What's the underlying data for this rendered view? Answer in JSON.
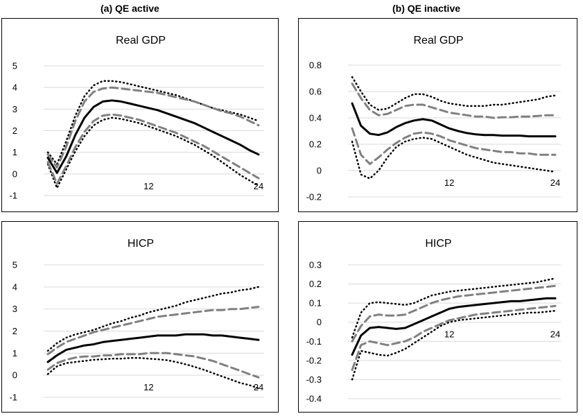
{
  "column_titles": [
    "(a) QE active",
    "(b) QE inactive"
  ],
  "chart_data": [
    {
      "type": "line",
      "panel": "QE active",
      "title": "Real GDP",
      "x": [
        1,
        2,
        3,
        4,
        5,
        6,
        7,
        8,
        9,
        10,
        11,
        12,
        13,
        14,
        15,
        16,
        17,
        18,
        19,
        20,
        21,
        22,
        23,
        24
      ],
      "xticks": [
        12,
        24
      ],
      "yticks": [
        5,
        4,
        3,
        2,
        1,
        0,
        -1
      ],
      "ylim": [
        -1,
        5
      ],
      "grid": true,
      "series": [
        {
          "name": "median",
          "style": "solid",
          "values": [
            0.75,
            0.05,
            0.8,
            1.8,
            2.6,
            3.1,
            3.35,
            3.4,
            3.35,
            3.25,
            3.15,
            3.05,
            2.95,
            2.8,
            2.65,
            2.5,
            2.35,
            2.15,
            1.95,
            1.75,
            1.55,
            1.35,
            1.1,
            0.9
          ]
        },
        {
          "name": "inner-upper",
          "style": "dashed",
          "values": [
            0.9,
            0.3,
            1.25,
            2.45,
            3.35,
            3.8,
            3.95,
            4.0,
            3.95,
            3.9,
            3.85,
            3.8,
            3.75,
            3.65,
            3.55,
            3.45,
            3.35,
            3.2,
            3.05,
            2.9,
            2.8,
            2.65,
            2.45,
            2.25
          ]
        },
        {
          "name": "inner-lower",
          "style": "dashed",
          "values": [
            0.55,
            -0.45,
            0.35,
            1.25,
            1.95,
            2.45,
            2.7,
            2.75,
            2.7,
            2.6,
            2.5,
            2.35,
            2.2,
            2.05,
            1.9,
            1.7,
            1.5,
            1.3,
            1.05,
            0.8,
            0.55,
            0.3,
            0.05,
            -0.2
          ]
        },
        {
          "name": "outer-upper",
          "style": "dotted",
          "values": [
            1.0,
            0.45,
            1.5,
            2.7,
            3.6,
            4.1,
            4.3,
            4.3,
            4.25,
            4.15,
            4.05,
            3.95,
            3.85,
            3.75,
            3.65,
            3.5,
            3.35,
            3.2,
            3.05,
            2.95,
            2.85,
            2.75,
            2.6,
            2.45
          ]
        },
        {
          "name": "outer-lower",
          "style": "dotted",
          "values": [
            0.45,
            -0.65,
            0.2,
            1.05,
            1.75,
            2.25,
            2.5,
            2.6,
            2.55,
            2.45,
            2.35,
            2.2,
            2.05,
            1.9,
            1.75,
            1.55,
            1.35,
            1.1,
            0.85,
            0.55,
            0.25,
            -0.05,
            -0.3,
            -0.55
          ]
        }
      ]
    },
    {
      "type": "line",
      "panel": "QE inactive",
      "title": "Real GDP",
      "x": [
        1,
        2,
        3,
        4,
        5,
        6,
        7,
        8,
        9,
        10,
        11,
        12,
        13,
        14,
        15,
        16,
        17,
        18,
        19,
        20,
        21,
        22,
        23,
        24
      ],
      "xticks": [
        12,
        24
      ],
      "yticks": [
        0.8,
        0.6,
        0.4,
        0.2,
        0,
        -0.2
      ],
      "ylim": [
        -0.2,
        0.8
      ],
      "grid": true,
      "series": [
        {
          "name": "median",
          "style": "solid",
          "values": [
            0.51,
            0.34,
            0.28,
            0.27,
            0.29,
            0.33,
            0.36,
            0.38,
            0.39,
            0.38,
            0.35,
            0.32,
            0.3,
            0.285,
            0.275,
            0.27,
            0.27,
            0.265,
            0.265,
            0.265,
            0.26,
            0.26,
            0.26,
            0.26
          ]
        },
        {
          "name": "inner-upper",
          "style": "dashed",
          "values": [
            0.66,
            0.55,
            0.46,
            0.42,
            0.43,
            0.46,
            0.49,
            0.5,
            0.5,
            0.48,
            0.46,
            0.44,
            0.43,
            0.42,
            0.41,
            0.41,
            0.4,
            0.405,
            0.405,
            0.41,
            0.41,
            0.415,
            0.42,
            0.42
          ]
        },
        {
          "name": "inner-lower",
          "style": "dashed",
          "values": [
            0.32,
            0.12,
            0.05,
            0.1,
            0.16,
            0.21,
            0.25,
            0.28,
            0.29,
            0.28,
            0.26,
            0.23,
            0.21,
            0.19,
            0.17,
            0.16,
            0.15,
            0.14,
            0.14,
            0.13,
            0.13,
            0.12,
            0.12,
            0.12
          ]
        },
        {
          "name": "outer-upper",
          "style": "dotted",
          "values": [
            0.71,
            0.6,
            0.5,
            0.46,
            0.47,
            0.51,
            0.55,
            0.58,
            0.58,
            0.56,
            0.53,
            0.51,
            0.5,
            0.49,
            0.49,
            0.49,
            0.5,
            0.5,
            0.51,
            0.52,
            0.53,
            0.54,
            0.56,
            0.57
          ]
        },
        {
          "name": "outer-lower",
          "style": "dotted",
          "values": [
            0.22,
            -0.03,
            -0.06,
            0.0,
            0.1,
            0.18,
            0.22,
            0.24,
            0.25,
            0.24,
            0.21,
            0.18,
            0.15,
            0.12,
            0.1,
            0.08,
            0.06,
            0.05,
            0.04,
            0.03,
            0.02,
            0.01,
            0.0,
            -0.01
          ]
        }
      ]
    },
    {
      "type": "line",
      "panel": "QE active",
      "title": "HICP",
      "x": [
        1,
        2,
        3,
        4,
        5,
        6,
        7,
        8,
        9,
        10,
        11,
        12,
        13,
        14,
        15,
        16,
        17,
        18,
        19,
        20,
        21,
        22,
        23,
        24
      ],
      "xticks": [
        12,
        24
      ],
      "yticks": [
        5,
        4,
        3,
        2,
        1,
        0,
        -1
      ],
      "ylim": [
        -1,
        5
      ],
      "grid": true,
      "series": [
        {
          "name": "median",
          "style": "solid",
          "values": [
            0.6,
            0.9,
            1.15,
            1.25,
            1.35,
            1.4,
            1.5,
            1.55,
            1.6,
            1.65,
            1.7,
            1.75,
            1.8,
            1.8,
            1.8,
            1.85,
            1.85,
            1.85,
            1.8,
            1.8,
            1.75,
            1.7,
            1.65,
            1.6
          ]
        },
        {
          "name": "inner-upper",
          "style": "dashed",
          "values": [
            0.95,
            1.25,
            1.5,
            1.65,
            1.8,
            1.95,
            2.05,
            2.15,
            2.25,
            2.35,
            2.45,
            2.55,
            2.65,
            2.7,
            2.75,
            2.8,
            2.85,
            2.9,
            2.95,
            2.95,
            3.0,
            3.0,
            3.05,
            3.1
          ]
        },
        {
          "name": "inner-lower",
          "style": "dashed",
          "values": [
            0.25,
            0.55,
            0.7,
            0.8,
            0.85,
            0.85,
            0.9,
            0.9,
            0.95,
            0.95,
            0.95,
            1.0,
            1.0,
            1.0,
            0.95,
            0.9,
            0.85,
            0.75,
            0.65,
            0.5,
            0.35,
            0.2,
            0.05,
            -0.1
          ]
        },
        {
          "name": "outer-upper",
          "style": "dotted",
          "values": [
            1.1,
            1.45,
            1.7,
            1.85,
            1.95,
            2.05,
            2.2,
            2.35,
            2.45,
            2.6,
            2.7,
            2.85,
            2.95,
            3.05,
            3.15,
            3.3,
            3.4,
            3.5,
            3.6,
            3.7,
            3.75,
            3.85,
            3.9,
            4.0
          ]
        },
        {
          "name": "outer-lower",
          "style": "dotted",
          "values": [
            0.05,
            0.4,
            0.55,
            0.6,
            0.65,
            0.7,
            0.72,
            0.75,
            0.75,
            0.78,
            0.78,
            0.75,
            0.72,
            0.68,
            0.6,
            0.5,
            0.38,
            0.25,
            0.1,
            -0.05,
            -0.2,
            -0.35,
            -0.45,
            -0.6
          ]
        }
      ]
    },
    {
      "type": "line",
      "panel": "QE inactive",
      "title": "HICP",
      "x": [
        1,
        2,
        3,
        4,
        5,
        6,
        7,
        8,
        9,
        10,
        11,
        12,
        13,
        14,
        15,
        16,
        17,
        18,
        19,
        20,
        21,
        22,
        23,
        24
      ],
      "xticks": [
        12,
        24
      ],
      "yticks": [
        0.3,
        0.2,
        0.1,
        0,
        -0.1,
        -0.2,
        -0.3,
        -0.4
      ],
      "ylim": [
        -0.4,
        0.3
      ],
      "grid": true,
      "series": [
        {
          "name": "median",
          "style": "solid",
          "values": [
            -0.17,
            -0.07,
            -0.03,
            -0.025,
            -0.03,
            -0.035,
            -0.03,
            -0.01,
            0.01,
            0.03,
            0.05,
            0.07,
            0.08,
            0.085,
            0.09,
            0.095,
            0.1,
            0.105,
            0.11,
            0.11,
            0.115,
            0.12,
            0.125,
            0.125
          ]
        },
        {
          "name": "inner-upper",
          "style": "dashed",
          "values": [
            -0.1,
            -0.02,
            0.03,
            0.04,
            0.035,
            0.035,
            0.04,
            0.06,
            0.08,
            0.1,
            0.115,
            0.125,
            0.135,
            0.14,
            0.145,
            0.15,
            0.155,
            0.16,
            0.165,
            0.17,
            0.175,
            0.18,
            0.185,
            0.19
          ]
        },
        {
          "name": "inner-lower",
          "style": "dashed",
          "values": [
            -0.25,
            -0.12,
            -0.1,
            -0.11,
            -0.12,
            -0.11,
            -0.1,
            -0.08,
            -0.05,
            -0.03,
            -0.01,
            0.01,
            0.02,
            0.03,
            0.04,
            0.045,
            0.05,
            0.055,
            0.06,
            0.065,
            0.07,
            0.075,
            0.08,
            0.085
          ]
        },
        {
          "name": "outer-upper",
          "style": "dotted",
          "values": [
            -0.08,
            0.05,
            0.1,
            0.105,
            0.1,
            0.095,
            0.09,
            0.1,
            0.12,
            0.14,
            0.15,
            0.16,
            0.165,
            0.17,
            0.175,
            0.18,
            0.185,
            0.19,
            0.195,
            0.2,
            0.205,
            0.21,
            0.22,
            0.23
          ]
        },
        {
          "name": "outer-lower",
          "style": "dotted",
          "values": [
            -0.3,
            -0.15,
            -0.16,
            -0.17,
            -0.175,
            -0.16,
            -0.14,
            -0.11,
            -0.08,
            -0.05,
            -0.02,
            0.0,
            0.01,
            0.015,
            0.02,
            0.025,
            0.03,
            0.035,
            0.04,
            0.045,
            0.05,
            0.05,
            0.055,
            0.06
          ]
        }
      ]
    }
  ]
}
